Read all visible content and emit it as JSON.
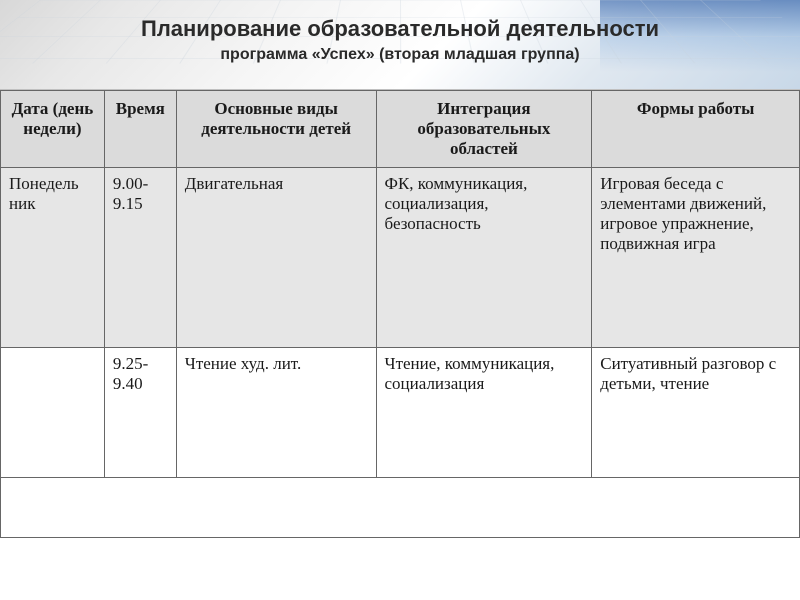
{
  "header": {
    "title": "Планирование образовательной деятельности",
    "subtitle": "программа «Успех» (вторая младшая группа)"
  },
  "table": {
    "columns": [
      {
        "label": "Дата (день недели)"
      },
      {
        "label": "Время"
      },
      {
        "label": "Основные виды деятельности детей"
      },
      {
        "label": "Интеграция образовательных областей"
      },
      {
        "label": "Формы работы"
      }
    ],
    "rows": [
      {
        "date": "Понедель ник",
        "time": "9.00-9.15",
        "activity": "Двигательная",
        "integration": "ФК, коммуникация, социализация, безопасность",
        "forms": "Игровая беседа с элементами движений, игровое упражнение, подвижная игра"
      },
      {
        "date": "",
        "time": "9.25-9.40",
        "activity": "Чтение худ. лит.",
        "integration": "Чтение, коммуникация, социализация",
        "forms": "Ситуативный разговор с детьми, чтение"
      }
    ]
  },
  "styles": {
    "header_bg_gradient": [
      "#d8d8d8",
      "#e8e8e8",
      "#f5f5f5",
      "#ffffff",
      "#e0e8f0",
      "#c8d8e8"
    ],
    "header_accent": "#003c96",
    "th_bg": "#dbdbdb",
    "row1_bg": "#e6e6e6",
    "row2_bg": "#ffffff",
    "border_color": "#666666",
    "title_fontsize": 22,
    "subtitle_fontsize": 16,
    "body_fontsize": 17,
    "title_font": "Verdana",
    "body_font": "Times New Roman"
  }
}
